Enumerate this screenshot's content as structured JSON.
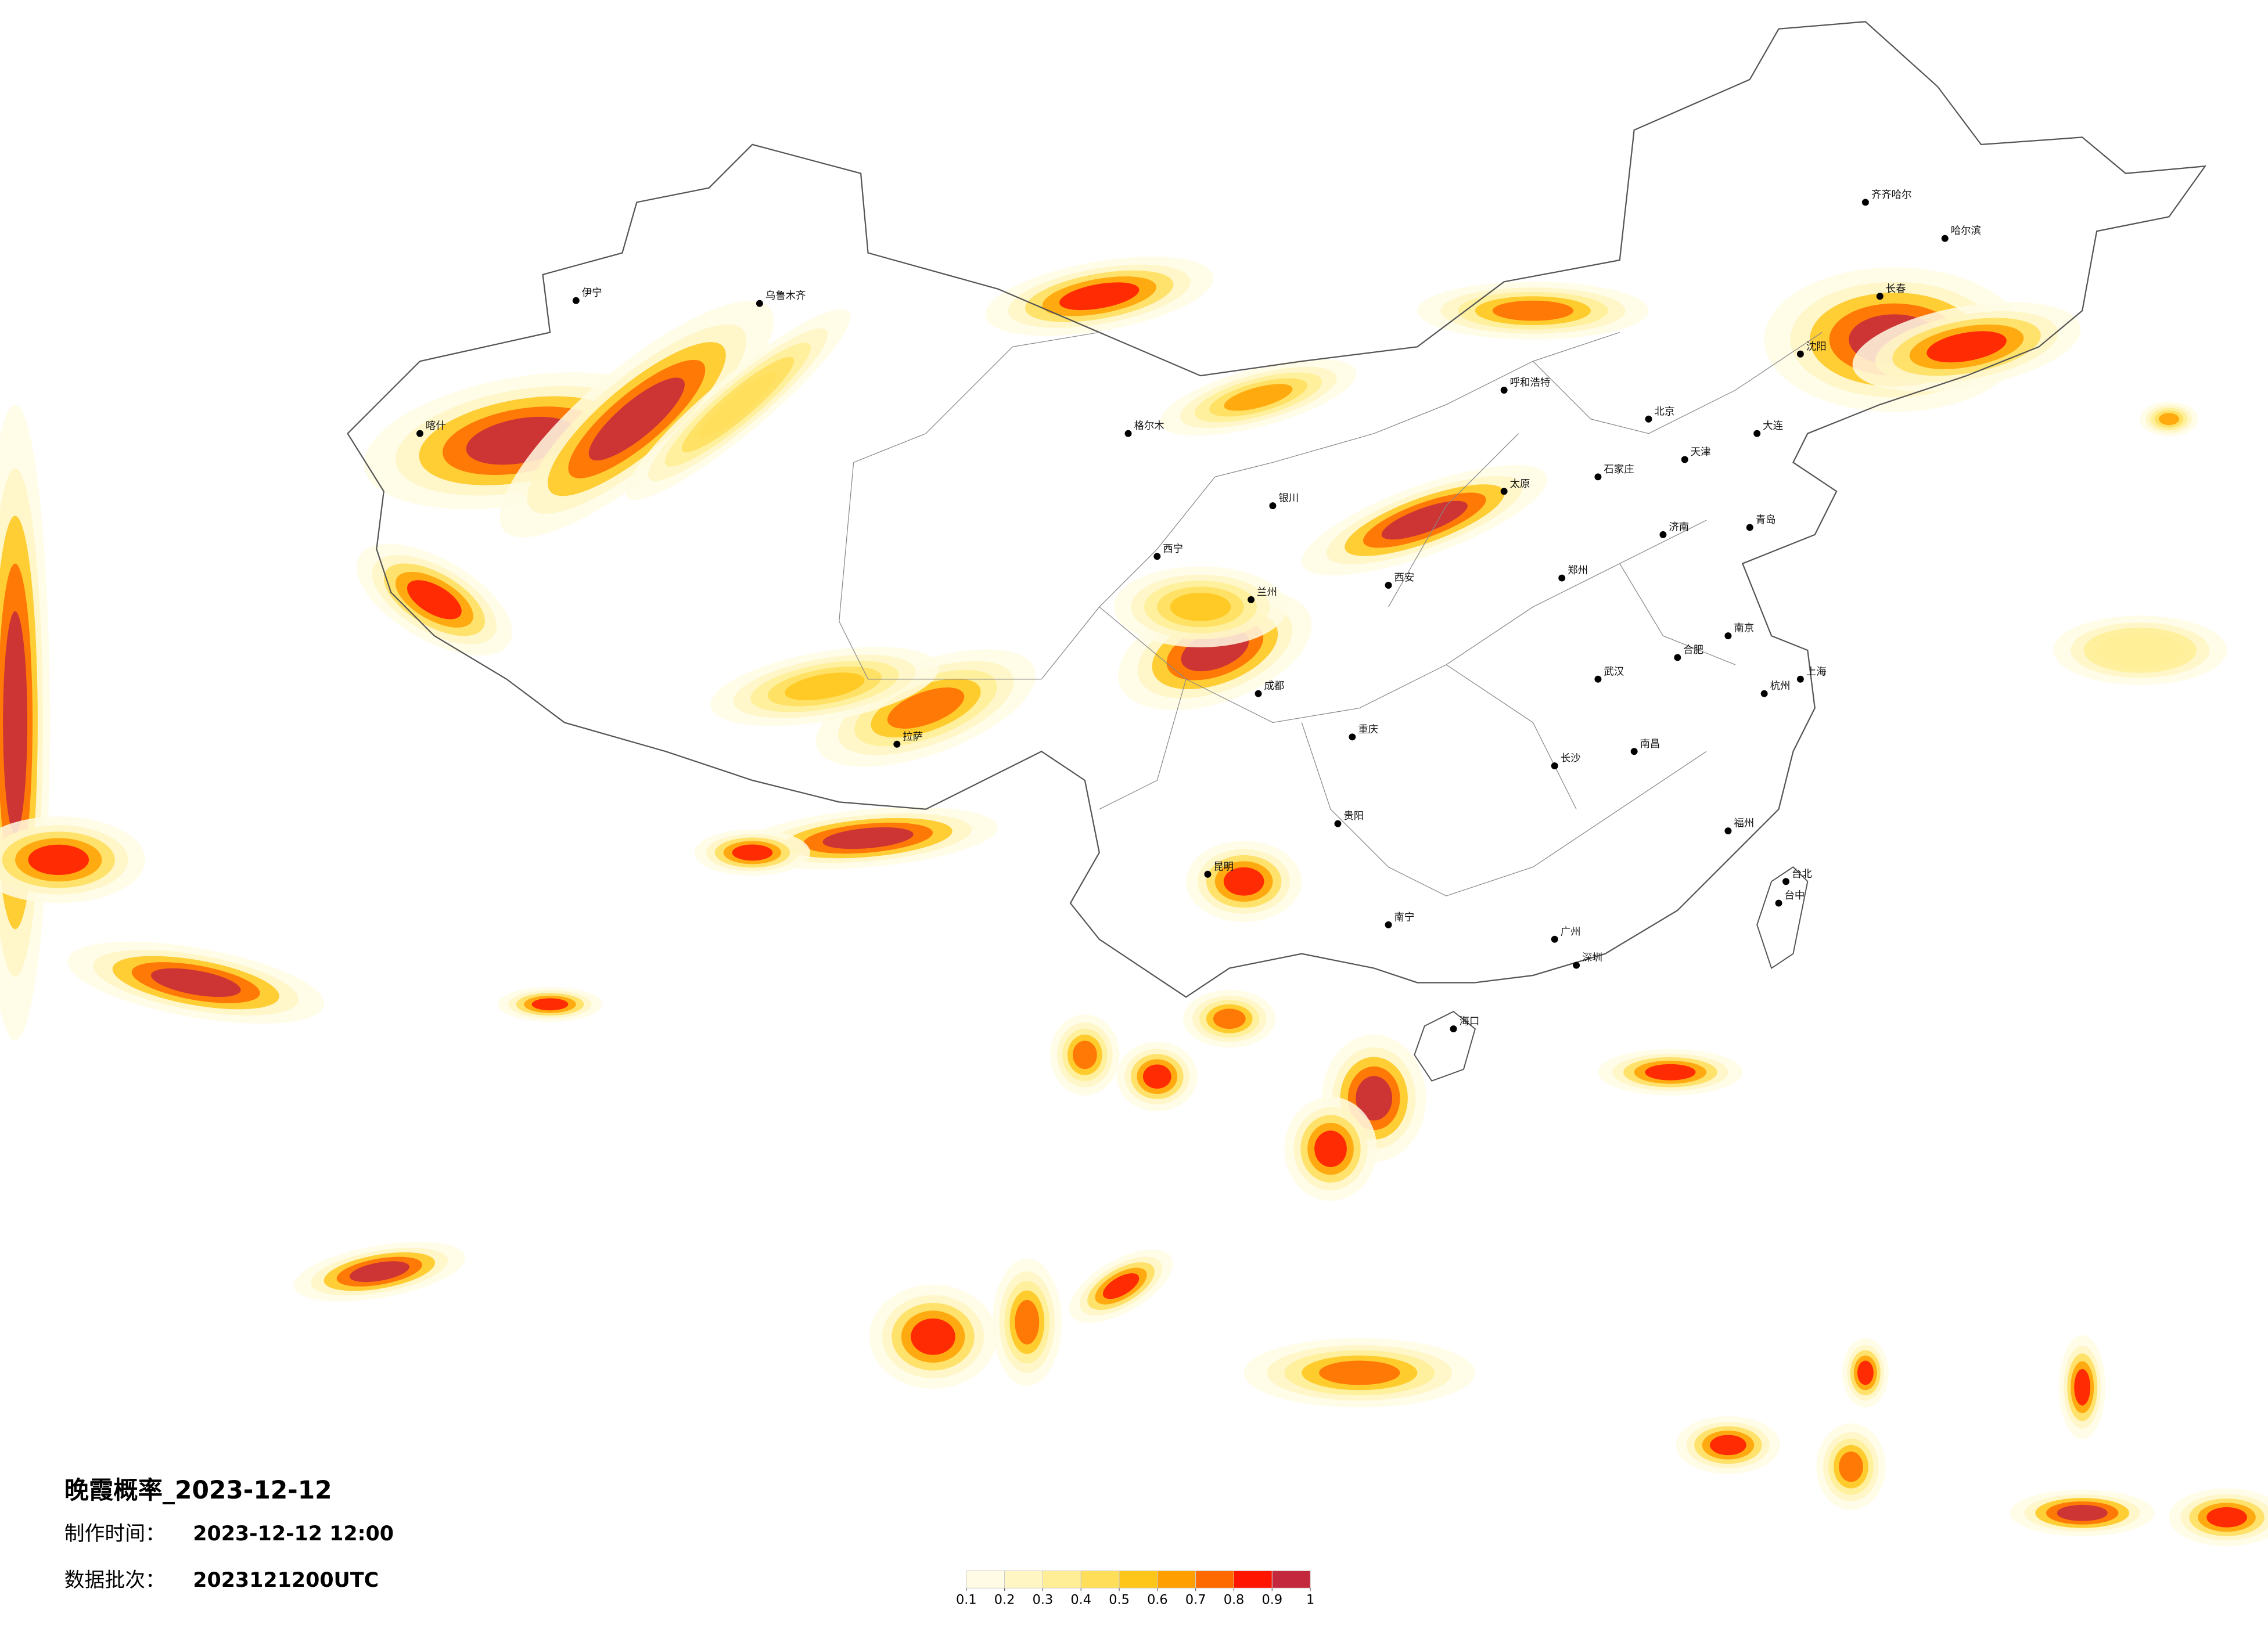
{
  "title": "晚霞概率_2023-12-12",
  "made_time": {
    "label": "制作时间：",
    "value": "2023-12-12 12:00"
  },
  "batch": {
    "label": "数据批次：",
    "value": "2023121200UTC"
  },
  "legend": {
    "ticks": [
      0.1,
      0.2,
      0.3,
      0.4,
      0.5,
      0.6,
      0.7,
      0.8,
      0.9,
      1
    ],
    "colors": [
      "#fffbe4",
      "#fff6c4",
      "#ffee96",
      "#ffde5a",
      "#ffc61a",
      "#ffa000",
      "#ff6a00",
      "#ff1500",
      "#c4283c"
    ]
  },
  "cities": [
    {
      "name": "北京"
    },
    {
      "name": "天津"
    },
    {
      "name": "石家庄"
    },
    {
      "name": "太原"
    },
    {
      "name": "呼和浩特"
    },
    {
      "name": "沈阳"
    },
    {
      "name": "长春"
    },
    {
      "name": "哈尔滨"
    },
    {
      "name": "济南"
    },
    {
      "name": "郑州"
    },
    {
      "name": "西安"
    },
    {
      "name": "兰州"
    },
    {
      "name": "西宁"
    },
    {
      "name": "银川"
    },
    {
      "name": "乌鲁木齐"
    },
    {
      "name": "拉萨"
    },
    {
      "name": "成都"
    },
    {
      "name": "重庆"
    },
    {
      "name": "贵阳"
    },
    {
      "name": "昆明"
    },
    {
      "name": "南宁"
    },
    {
      "name": "广州"
    },
    {
      "name": "深圳"
    },
    {
      "name": "福州"
    },
    {
      "name": "南昌"
    },
    {
      "name": "长沙"
    },
    {
      "name": "武汉"
    },
    {
      "name": "合肥"
    },
    {
      "name": "南京"
    },
    {
      "name": "杭州"
    },
    {
      "name": "上海"
    },
    {
      "name": "海口"
    },
    {
      "name": "台北"
    },
    {
      "name": "大连"
    },
    {
      "name": "青岛"
    },
    {
      "name": "齐齐哈尔"
    },
    {
      "name": "喀什"
    },
    {
      "name": "伊宁"
    },
    {
      "name": "格尔木"
    },
    {
      "name": "台中"
    }
  ]
}
